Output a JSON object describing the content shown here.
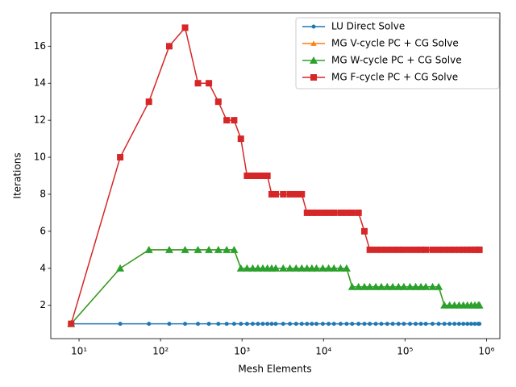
{
  "chart_data": {
    "type": "line",
    "x_label": "Mesh Elements",
    "y_label": "Iterations",
    "x_scale": "log",
    "legend": "upper right",
    "xlim": [
      4.5,
      1460000
    ],
    "ylim": [
      0.2,
      17.8
    ],
    "xticks": [
      {
        "value": 10,
        "label": "10¹"
      },
      {
        "value": 100,
        "label": "10²"
      },
      {
        "value": 1000,
        "label": "10³"
      },
      {
        "value": 10000,
        "label": "10⁴"
      },
      {
        "value": 100000,
        "label": "10⁵"
      },
      {
        "value": 1000000,
        "label": "10⁶"
      }
    ],
    "yticks": [
      2,
      4,
      6,
      8,
      10,
      12,
      14,
      16
    ],
    "x": [
      8,
      32,
      72,
      128,
      200,
      288,
      392,
      512,
      648,
      800,
      968,
      1152,
      1352,
      1568,
      1800,
      2048,
      2312,
      2592,
      3200,
      3872,
      4608,
      5408,
      6272,
      7200,
      8192,
      9800,
      11552,
      13448,
      16200,
      19208,
      22472,
      26912,
      31752,
      36992,
      43808,
      51200,
      60552,
      70688,
      83232,
      96800,
      115200,
      135200,
      156800,
      180000,
      217800,
      259200,
      304200,
      352800,
      405000,
      460800,
      520200,
      583200,
      649800,
      720000,
      793800,
      819200
    ],
    "series": [
      {
        "name": "LU Direct Solve",
        "color": "#1f77b4",
        "marker": "point",
        "values": [
          1,
          1,
          1,
          1,
          1,
          1,
          1,
          1,
          1,
          1,
          1,
          1,
          1,
          1,
          1,
          1,
          1,
          1,
          1,
          1,
          1,
          1,
          1,
          1,
          1,
          1,
          1,
          1,
          1,
          1,
          1,
          1,
          1,
          1,
          1,
          1,
          1,
          1,
          1,
          1,
          1,
          1,
          1,
          1,
          1,
          1,
          1,
          1,
          1,
          1,
          1,
          1,
          1,
          1,
          1,
          1
        ]
      },
      {
        "name": "MG V-cycle PC + CG Solve",
        "color": "#ff7f0e",
        "marker": "triangle",
        "values": [
          1,
          4,
          5,
          5,
          5,
          5,
          5,
          5,
          5,
          5,
          4,
          4,
          4,
          4,
          4,
          4,
          4,
          4,
          4,
          4,
          4,
          4,
          4,
          4,
          4,
          4,
          4,
          4,
          4,
          4,
          3,
          3,
          3,
          3,
          3,
          3,
          3,
          3,
          3,
          3,
          3,
          3,
          3,
          3,
          3,
          3,
          2,
          2,
          2,
          2,
          2,
          2,
          2,
          2,
          2,
          2
        ]
      },
      {
        "name": "MG W-cycle PC + CG Solve",
        "color": "#2ca02c",
        "marker": "triangle-large",
        "values": [
          1,
          4,
          5,
          5,
          5,
          5,
          5,
          5,
          5,
          5,
          4,
          4,
          4,
          4,
          4,
          4,
          4,
          4,
          4,
          4,
          4,
          4,
          4,
          4,
          4,
          4,
          4,
          4,
          4,
          4,
          3,
          3,
          3,
          3,
          3,
          3,
          3,
          3,
          3,
          3,
          3,
          3,
          3,
          3,
          3,
          3,
          2,
          2,
          2,
          2,
          2,
          2,
          2,
          2,
          2,
          2
        ]
      },
      {
        "name": "MG F-cycle PC + CG Solve",
        "color": "#d62728",
        "marker": "square",
        "values": [
          1,
          10,
          13,
          16,
          17,
          14,
          14,
          13,
          12,
          12,
          11,
          9,
          9,
          9,
          9,
          9,
          8,
          8,
          8,
          8,
          8,
          8,
          7,
          7,
          7,
          7,
          7,
          7,
          7,
          7,
          7,
          7,
          6,
          5,
          5,
          5,
          5,
          5,
          5,
          5,
          5,
          5,
          5,
          5,
          5,
          5,
          5,
          5,
          5,
          5,
          5,
          5,
          5,
          5,
          5,
          5
        ]
      }
    ]
  }
}
